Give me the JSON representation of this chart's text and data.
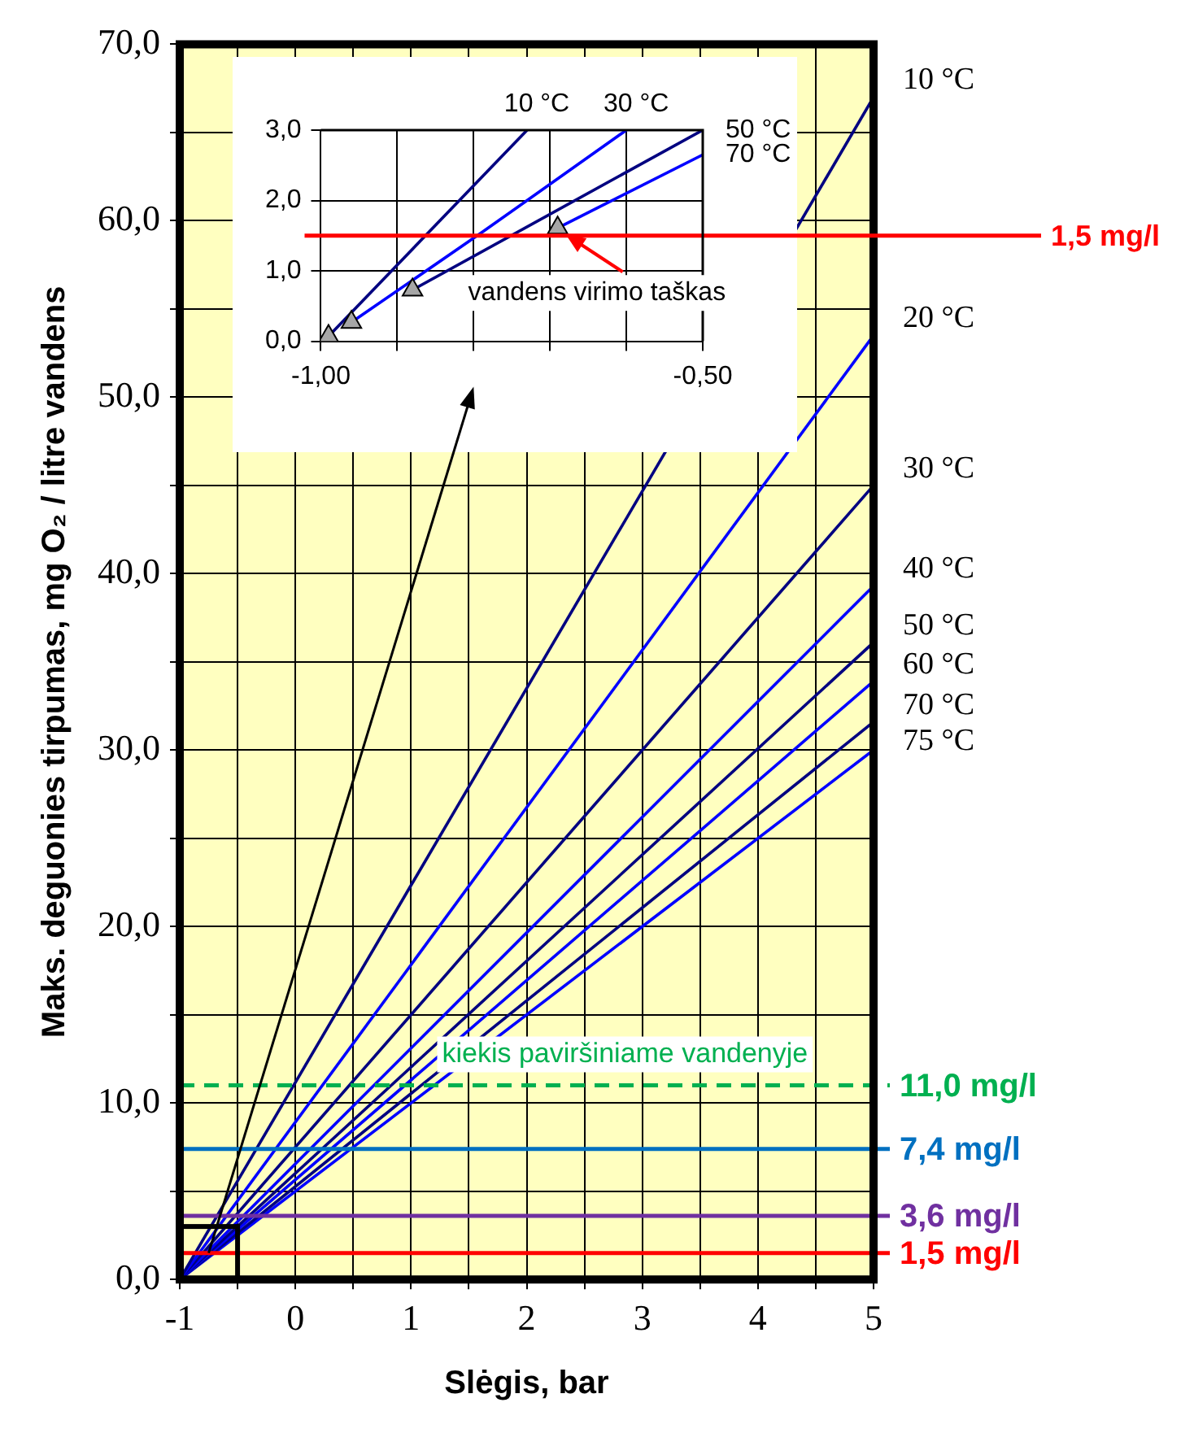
{
  "chart_data": [
    {
      "type": "line",
      "xlabel": "Slėgis, bar",
      "ylabel": "Maks. deguonies tirpumas, mg O₂ / litre vandens",
      "xlim": [
        -1,
        5
      ],
      "ylim": [
        0,
        70
      ],
      "xticks": [
        -1,
        {
          "value": -0.5,
          "label": null
        },
        0,
        {
          "value": 0.5,
          "label": null
        },
        1,
        {
          "value": 1.5,
          "label": null
        },
        2,
        {
          "value": 2.5,
          "label": null
        },
        3,
        {
          "value": 3.5,
          "label": null
        },
        4,
        {
          "value": 4.5,
          "label": null
        },
        5
      ],
      "yticks": [
        {
          "value": 0,
          "label": "0,0"
        },
        {
          "value": 5,
          "label": null
        },
        {
          "value": 10,
          "label": "10,0"
        },
        {
          "value": 15,
          "label": null
        },
        {
          "value": 20,
          "label": "20,0"
        },
        {
          "value": 25,
          "label": null
        },
        {
          "value": 30,
          "label": "30,0"
        },
        {
          "value": 35,
          "label": null
        },
        {
          "value": 40,
          "label": "40,0"
        },
        {
          "value": 45,
          "label": null
        },
        {
          "value": 50,
          "label": "50,0"
        },
        {
          "value": 55,
          "label": null
        },
        {
          "value": 60,
          "label": "60,0"
        },
        {
          "value": 65,
          "label": null
        },
        {
          "value": 70,
          "label": "70,0"
        }
      ],
      "grid": true,
      "series": [
        {
          "name": "10 °C",
          "color": "#000080",
          "x": [
            -1,
            5
          ],
          "values": [
            0,
            67
          ]
        },
        {
          "name": "20 °C",
          "color": "#0000ff",
          "x": [
            -1,
            5
          ],
          "values": [
            0,
            53.5
          ]
        },
        {
          "name": "30 °C",
          "color": "#000080",
          "x": [
            -1,
            5
          ],
          "values": [
            0,
            45
          ]
        },
        {
          "name": "40 °C",
          "color": "#0000ff",
          "x": [
            -1,
            5
          ],
          "values": [
            0,
            39.3
          ]
        },
        {
          "name": "50 °C",
          "color": "#000080",
          "x": [
            -1,
            5
          ],
          "values": [
            0,
            36.1
          ]
        },
        {
          "name": "60 °C",
          "color": "#0000ff",
          "x": [
            -1,
            5
          ],
          "values": [
            0,
            33.9
          ]
        },
        {
          "name": "70 °C",
          "color": "#000080",
          "x": [
            -1,
            5
          ],
          "values": [
            0,
            31.6
          ]
        },
        {
          "name": "75 °C",
          "color": "#0000ff",
          "x": [
            -1,
            5
          ],
          "values": [
            0,
            30
          ]
        }
      ],
      "ref_lines": [
        {
          "axis": "y",
          "value": 11,
          "label": "11,0 mg/l",
          "color": "#00b050",
          "line_style": "dashed"
        },
        {
          "axis": "y",
          "value": 7.4,
          "label": "7,4 mg/l",
          "color": "#0070c0"
        },
        {
          "axis": "y",
          "value": 3.6,
          "label": "3,6 mg/l",
          "color": "#7030a0"
        },
        {
          "axis": "y",
          "value": 1.5,
          "label": "1,5 mg/l",
          "color": "#ff0000"
        }
      ],
      "annotations": [
        {
          "text": "kiekis paviršiniame vandenyje",
          "x": 2.85,
          "y": 11
        }
      ]
    },
    {
      "type": "line",
      "xlim": [
        -1,
        -0.5
      ],
      "ylim": [
        0,
        3
      ],
      "xticks": [
        {
          "value": -1,
          "label": "-1,00"
        },
        {
          "value": -0.9,
          "label": null
        },
        {
          "value": -0.8,
          "label": null
        },
        {
          "value": -0.7,
          "label": null
        },
        {
          "value": -0.6,
          "label": null
        },
        {
          "value": -0.5,
          "label": "-0,50"
        }
      ],
      "yticks": [
        {
          "value": 0,
          "label": "0,0"
        },
        {
          "value": 1,
          "label": "1,0"
        },
        {
          "value": 2,
          "label": "2,0"
        },
        {
          "value": 3,
          "label": "3,0"
        }
      ],
      "grid": true,
      "series": [
        {
          "name": "10 °C",
          "color": "#000080",
          "x": [
            -0.99,
            -0.73
          ],
          "values": [
            0.07,
            3
          ]
        },
        {
          "name": "30 °C",
          "color": "#0000ff",
          "x": [
            -0.96,
            -0.79,
            -0.6
          ],
          "values": [
            0.27,
            1.54,
            3
          ]
        },
        {
          "name": "50 °C",
          "color": "#000080",
          "x": [
            -0.88,
            -0.5
          ],
          "values": [
            0.73,
            3
          ]
        },
        {
          "name": "70 °C",
          "color": "#0000ff",
          "x": [
            -0.69,
            -0.5
          ],
          "values": [
            1.61,
            2.65
          ]
        },
        {
          "type": "scatter",
          "marker": "triangle",
          "color": "#a6a6a6",
          "x": [
            -0.99,
            -0.96,
            -0.88,
            -0.69
          ],
          "values": [
            0.07,
            0.27,
            0.73,
            1.61
          ]
        }
      ],
      "ref_lines": [
        {
          "axis": "y",
          "value": 1.5,
          "label": "1,5 mg/l",
          "color": "#ff0000"
        }
      ],
      "annotations": [
        {
          "text": "vandens virimo taškas",
          "x": -0.69,
          "y": 1.61
        }
      ]
    }
  ]
}
